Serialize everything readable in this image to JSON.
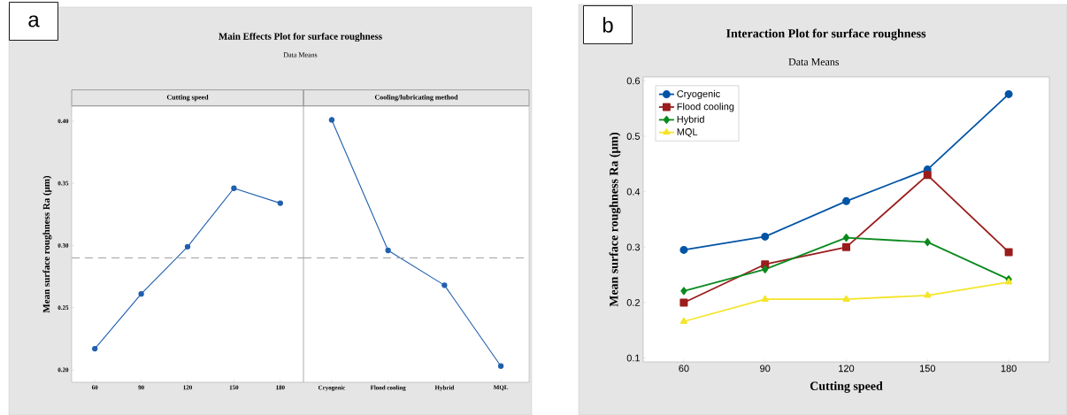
{
  "chart_data": [
    {
      "type": "line",
      "title": "Main Effects Plot for surface roughness",
      "subtitle": "Data Means",
      "xlabel": "Cutting speed",
      "ylabel": "Mean surface roughness Ra (μm)",
      "annotations": [
        "a"
      ],
      "categories": [
        "60",
        "90",
        "120",
        "150",
        "180"
      ],
      "series": [
        {
          "color": "#1f5fae",
          "values": [
            0.217,
            0.261,
            0.299,
            0.346,
            0.334
          ]
        }
      ],
      "ylim": [
        0.19,
        0.412
      ],
      "yticks": [
        {
          "value": 0.2,
          "label": "0.20"
        },
        {
          "value": 0.25,
          "label": "0.25"
        },
        {
          "value": 0.3,
          "label": "0.30"
        },
        {
          "value": 0.35,
          "label": "0.35"
        },
        {
          "value": 0.4,
          "label": "0.40"
        }
      ],
      "ref_lines": [
        {
          "axis": "y",
          "value": 0.29,
          "color": "#a0a0a0",
          "line_style": "dashed"
        }
      ],
      "marker": "circle",
      "grid": false,
      "legend": false
    },
    {
      "type": "line",
      "xlabel": "Cooling/lubricating method",
      "categories": [
        "Cryogenic",
        "Flood cooling",
        "Hybrid",
        "MQL"
      ],
      "series": [
        {
          "color": "#1f5fae",
          "values": [
            0.401,
            0.296,
            0.268,
            0.203
          ]
        }
      ],
      "ylim": [
        0.19,
        0.412
      ],
      "ref_lines": [
        {
          "axis": "y",
          "value": 0.29,
          "color": "#a0a0a0",
          "line_style": "dashed"
        }
      ],
      "tick_labels": "x",
      "marker": "circle",
      "grid": false,
      "legend": false
    },
    {
      "type": "line",
      "title": "Interaction Plot for surface roughness",
      "subtitle": "Data Means",
      "xlabel": "Cutting speed",
      "ylabel": "Mean surface roughness Ra (μm)",
      "annotations": [
        "b"
      ],
      "x": [
        60,
        90,
        120,
        150,
        180
      ],
      "series": [
        {
          "name": "Cryogenic",
          "color": "#0054a6",
          "marker": "circle",
          "values": [
            0.295,
            0.319,
            0.383,
            0.44,
            0.576
          ]
        },
        {
          "name": "Flood cooling",
          "color": "#9b1c1c",
          "marker": "square",
          "values": [
            0.2,
            0.269,
            0.3,
            0.43,
            0.291
          ]
        },
        {
          "name": "Hybrid",
          "color": "#0a8a1e",
          "marker": "diamond",
          "values": [
            0.221,
            0.26,
            0.317,
            0.309,
            0.242
          ]
        },
        {
          "name": "MQL",
          "color": "#f5e52a",
          "marker": "triangle",
          "values": [
            0.166,
            0.206,
            0.206,
            0.213,
            0.237
          ]
        }
      ],
      "xlim": [
        45,
        195
      ],
      "xticks": [
        60,
        90,
        120,
        150,
        180
      ],
      "ylim": [
        0.093,
        0.607
      ],
      "yticks": [
        0.1,
        0.2,
        0.3,
        0.4,
        0.5,
        0.6
      ],
      "grid": false,
      "legend": "top left"
    }
  ]
}
